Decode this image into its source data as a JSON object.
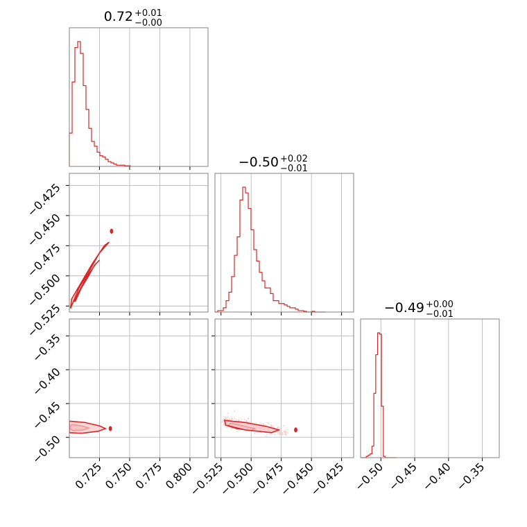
{
  "colors": {
    "main": "#d62728",
    "light": "#f7c6c7",
    "fill2": "#f2b5b6",
    "grid": "#b0b0b0",
    "frame": "#808080"
  },
  "chart_data": [
    {
      "type": "bar",
      "subplot": "hist-p1",
      "title": {
        "value": "0.72",
        "upper": "+0.01",
        "lower": "−0.00"
      },
      "xlim": [
        0.7,
        0.815
      ],
      "bin_edges_start": 0.7,
      "bin_width": 0.0023,
      "counts": [
        28,
        71,
        100,
        105,
        95,
        68,
        48,
        32,
        21,
        17,
        12,
        9,
        8,
        6,
        4,
        3,
        2,
        1,
        1,
        1,
        0.5,
        0.5
      ],
      "xticks": [
        0.725,
        0.75,
        0.775,
        0.8
      ]
    },
    {
      "type": "bar",
      "subplot": "hist-p2",
      "title": {
        "value": "−0.50",
        "upper": "+0.02",
        "lower": "−0.01"
      },
      "xlim": [
        -0.53,
        -0.415
      ],
      "bin_edges_start": -0.53,
      "bin_width": 0.0023,
      "counts": [
        0,
        1,
        1,
        3,
        8,
        14,
        25,
        40,
        53,
        79,
        88,
        84,
        73,
        58,
        44,
        36,
        28,
        22,
        17,
        17,
        13,
        8,
        8,
        6,
        6,
        5,
        4,
        3,
        3,
        2,
        1,
        1,
        0.5,
        0,
        0,
        0.5,
        0,
        0,
        0,
        0
      ],
      "xticks": [
        -0.525,
        -0.5,
        -0.475,
        -0.45,
        -0.425
      ]
    },
    {
      "type": "bar",
      "subplot": "hist-p3",
      "title": {
        "value": "−0.49",
        "upper": "+0.00",
        "lower": "−0.01"
      },
      "xlim": [
        -0.53,
        -0.325
      ],
      "bin_edges_start": -0.53,
      "bin_width": 0.0028,
      "counts": [
        0,
        0,
        0,
        1,
        2,
        3,
        9,
        50,
        80,
        97,
        96,
        40,
        1,
        0,
        0,
        0,
        0,
        0,
        0
      ],
      "xticks": [
        -0.5,
        -0.45,
        -0.4,
        -0.35
      ]
    },
    {
      "type": "scatter",
      "subplot": "p1-vs-p2",
      "xlim": [
        0.7,
        0.815
      ],
      "ylim": [
        -0.53,
        -0.415
      ],
      "yticks": [
        -0.425,
        -0.45,
        -0.475,
        -0.5,
        -0.525
      ],
      "axis": {
        "x0": 0.7,
        "y0": -0.522,
        "dx": 0.12,
        "dy": -0.47,
        "slope": 2.25,
        "width": 0.004
      },
      "contours": [
        [
          [
            0.705,
            -0.521
          ],
          [
            0.71,
            -0.51
          ],
          [
            0.716,
            -0.5
          ],
          [
            0.721,
            -0.491
          ],
          [
            0.725,
            -0.487
          ],
          [
            0.722,
            -0.49
          ],
          [
            0.715,
            -0.5
          ],
          [
            0.709,
            -0.511
          ],
          [
            0.704,
            -0.521
          ]
        ],
        [
          [
            0.701,
            -0.527
          ],
          [
            0.708,
            -0.51
          ],
          [
            0.716,
            -0.497
          ],
          [
            0.725,
            -0.481
          ],
          [
            0.733,
            -0.472
          ],
          [
            0.729,
            -0.475
          ],
          [
            0.719,
            -0.49
          ],
          [
            0.709,
            -0.507
          ],
          [
            0.702,
            -0.519
          ],
          [
            0.701,
            -0.527
          ]
        ]
      ],
      "blobs": [
        [
          0.735,
          -0.463
        ]
      ]
    },
    {
      "type": "scatter",
      "subplot": "p1-vs-p3",
      "xlim": [
        0.7,
        0.815
      ],
      "ylim": [
        -0.53,
        -0.325
      ],
      "yticks": [
        -0.35,
        -0.4,
        -0.45,
        -0.5
      ],
      "xticks": [
        0.725,
        0.75,
        0.775,
        0.8
      ],
      "axis": {
        "x0": 0.7,
        "y0": -0.486,
        "dx": 0.055,
        "dy": -0.487,
        "slope": 0.0,
        "width": 0.004
      },
      "contours": [
        [
          [
            0.702,
            -0.481
          ],
          [
            0.71,
            -0.483
          ],
          [
            0.716,
            -0.486
          ],
          [
            0.712,
            -0.489
          ],
          [
            0.703,
            -0.49
          ],
          [
            0.7,
            -0.486
          ]
        ],
        [
          [
            0.7,
            -0.476
          ],
          [
            0.713,
            -0.478
          ],
          [
            0.725,
            -0.483
          ],
          [
            0.73,
            -0.487
          ],
          [
            0.724,
            -0.491
          ],
          [
            0.71,
            -0.494
          ],
          [
            0.7,
            -0.493
          ]
        ]
      ],
      "blobs": [
        [
          0.734,
          -0.487
        ]
      ]
    },
    {
      "type": "scatter",
      "subplot": "p2-vs-p3",
      "xlim": [
        -0.53,
        -0.415
      ],
      "ylim": [
        -0.53,
        -0.325
      ],
      "xticks": [
        -0.525,
        -0.5,
        -0.475,
        -0.45,
        -0.425
      ],
      "axis": {
        "x0": -0.522,
        "y0": -0.477,
        "dx": -0.47,
        "dy": -0.492,
        "slope": -0.28,
        "width": 0.004
      },
      "contours": [
        [
          [
            -0.517,
            -0.479
          ],
          [
            -0.507,
            -0.483
          ],
          [
            -0.497,
            -0.487
          ],
          [
            -0.5,
            -0.49
          ],
          [
            -0.512,
            -0.487
          ],
          [
            -0.519,
            -0.483
          ]
        ],
        [
          [
            -0.522,
            -0.475
          ],
          [
            -0.505,
            -0.478
          ],
          [
            -0.487,
            -0.484
          ],
          [
            -0.477,
            -0.489
          ],
          [
            -0.483,
            -0.493
          ],
          [
            -0.505,
            -0.489
          ],
          [
            -0.521,
            -0.482
          ]
        ]
      ],
      "blobs": [
        [
          -0.463,
          -0.489
        ]
      ]
    }
  ]
}
